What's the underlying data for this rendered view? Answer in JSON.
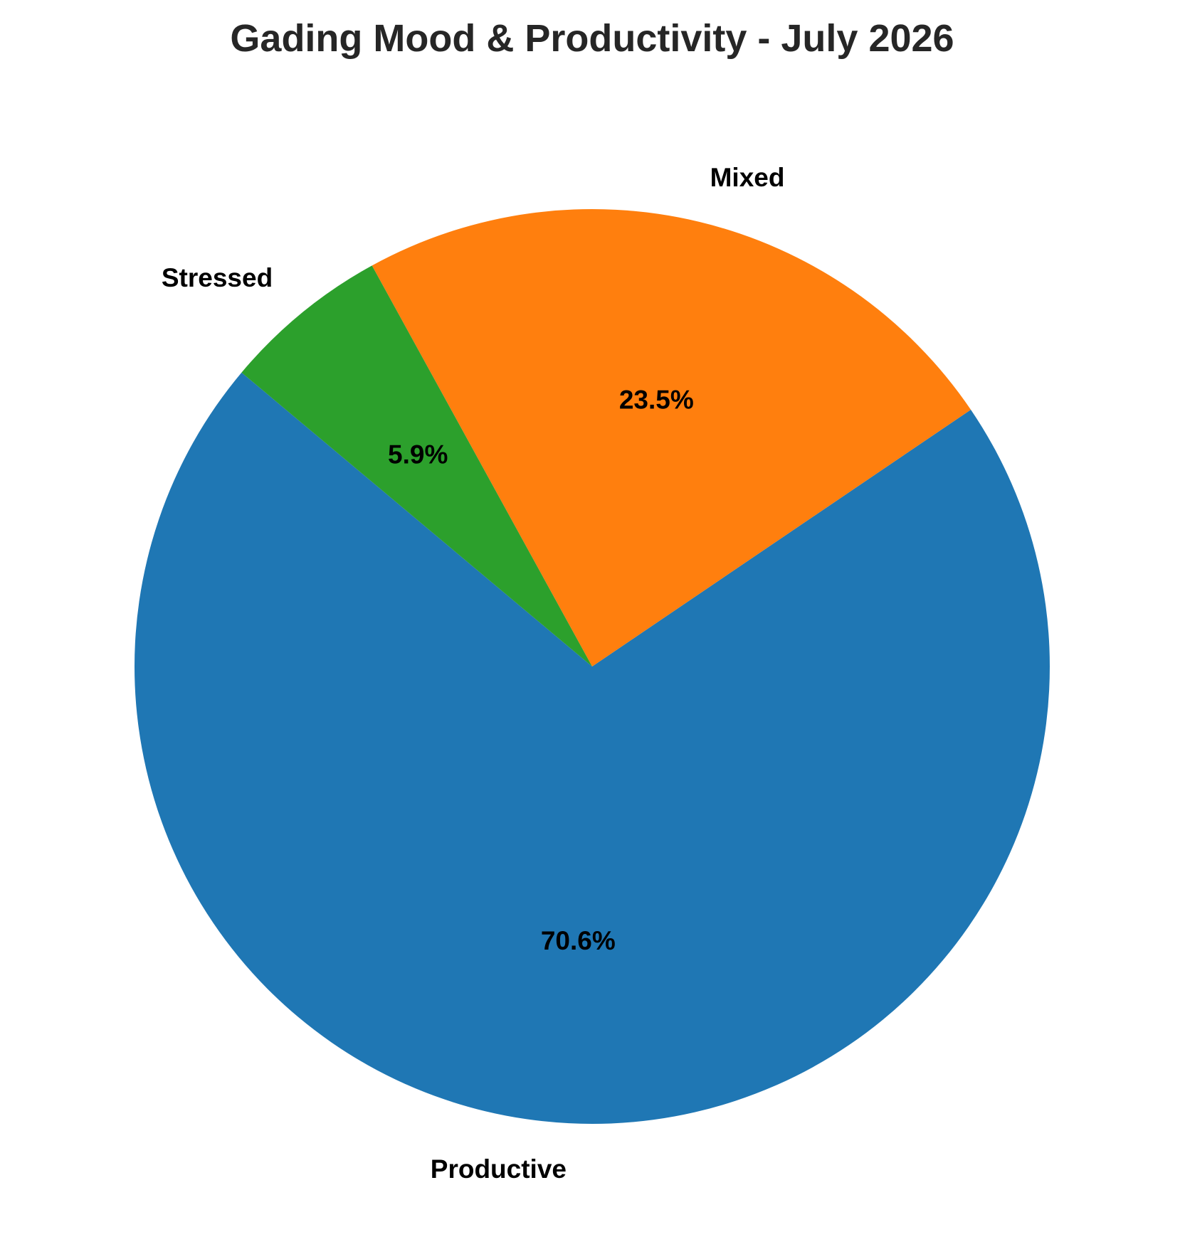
{
  "chart_data": {
    "type": "pie",
    "title": "Gading Mood & Productivity - July 2026",
    "categories": [
      "Productive",
      "Mixed",
      "Stressed"
    ],
    "values": [
      70.6,
      23.5,
      5.9
    ],
    "percent_labels": [
      "70.6%",
      "23.5%",
      "5.9%"
    ],
    "colors": [
      "#1f77b4",
      "#ff7f0e",
      "#2ca02c"
    ],
    "start_angle_deg": 140,
    "direction": "counterclockwise",
    "legend": "none"
  }
}
